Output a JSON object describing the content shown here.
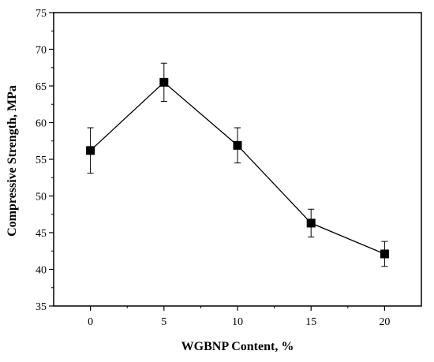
{
  "chart_data": {
    "type": "line",
    "title": "",
    "xlabel": "WGBNP Content, %",
    "ylabel": "Compressive Strength, MPa",
    "x": [
      0,
      5,
      10,
      15,
      20
    ],
    "xlim": [
      -2.5,
      22.5
    ],
    "ylim": [
      35,
      75
    ],
    "xticks": [
      "0",
      "5",
      "10",
      "15",
      "20"
    ],
    "yticks": [
      "35",
      "40",
      "45",
      "50",
      "55",
      "60",
      "65",
      "70",
      "75"
    ],
    "grid": false,
    "series": [
      {
        "values": [
          56.2,
          65.5,
          56.9,
          46.3,
          42.1
        ],
        "error": [
          3.1,
          2.6,
          2.4,
          1.9,
          1.7
        ],
        "marker": "square",
        "color": "#000000"
      }
    ]
  }
}
